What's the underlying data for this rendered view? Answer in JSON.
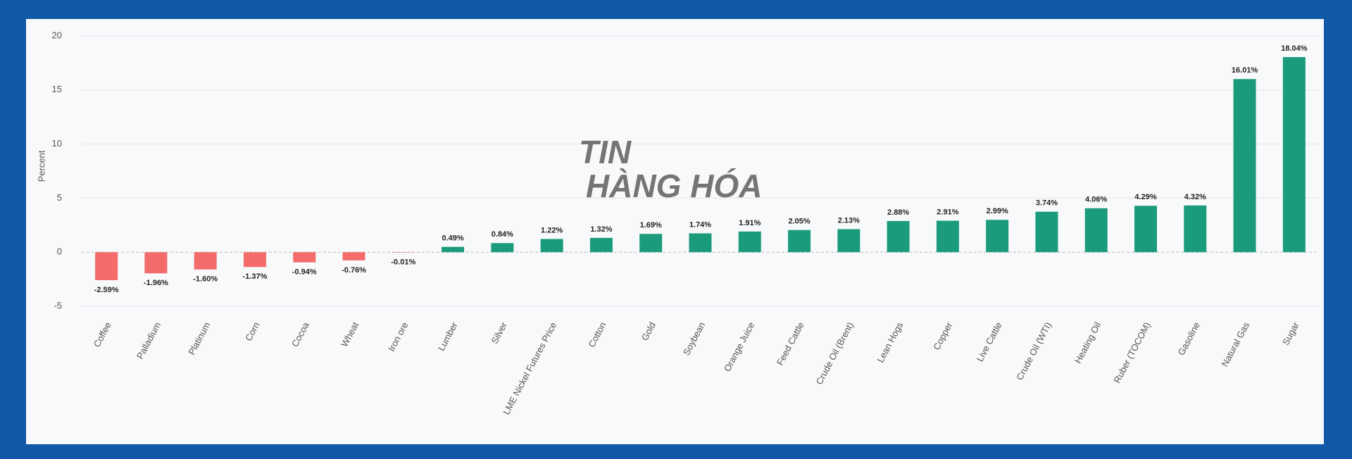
{
  "chart_data": {
    "type": "bar",
    "y_label": "Percent",
    "categories": [
      "Coffee",
      "Palladium",
      "Platinum",
      "Corn",
      "Cocoa",
      "Wheat",
      "Iron ore",
      "Lumber",
      "Silver",
      "LME Nickel Futures Price",
      "Cotton",
      "Gold",
      "Soybean",
      "Orange Juice",
      "Feed Cattle",
      "Crude Oil (Brent)",
      "Lean Hogs",
      "Copper",
      "Live Cattle",
      "Crude Oil (WTI)",
      "Heating Oil",
      "Ruber (TOCOM)",
      "Gasoline",
      "Natural Gas",
      "Sugar"
    ],
    "values": [
      -2.59,
      -1.96,
      -1.6,
      -1.37,
      -0.94,
      -0.76,
      -0.01,
      0.49,
      0.84,
      1.22,
      1.32,
      1.69,
      1.74,
      1.91,
      2.05,
      2.13,
      2.88,
      2.91,
      2.99,
      3.74,
      4.06,
      4.29,
      4.32,
      16.01,
      18.04
    ],
    "value_labels": [
      "-2.59%",
      "-1.96%",
      "-1.60%",
      "-1.37%",
      "-0.94%",
      "-0.76%",
      "-0.01%",
      "0.49%",
      "0.84%",
      "1.22%",
      "1.32%",
      "1.69%",
      "1.74%",
      "1.91%",
      "2.05%",
      "2.13%",
      "2.88%",
      "2.91%",
      "2.99%",
      "3.74%",
      "4.06%",
      "4.29%",
      "4.32%",
      "16.01%",
      "18.04%"
    ],
    "color": "#1a9c7c",
    "negative_color": "#f36b6b",
    "ylim": [
      -5,
      20
    ],
    "yticks": [
      -5,
      0,
      5,
      10,
      15,
      20
    ],
    "grid": true,
    "watermark": [
      "TIN",
      "HÀNG HÓA"
    ]
  }
}
